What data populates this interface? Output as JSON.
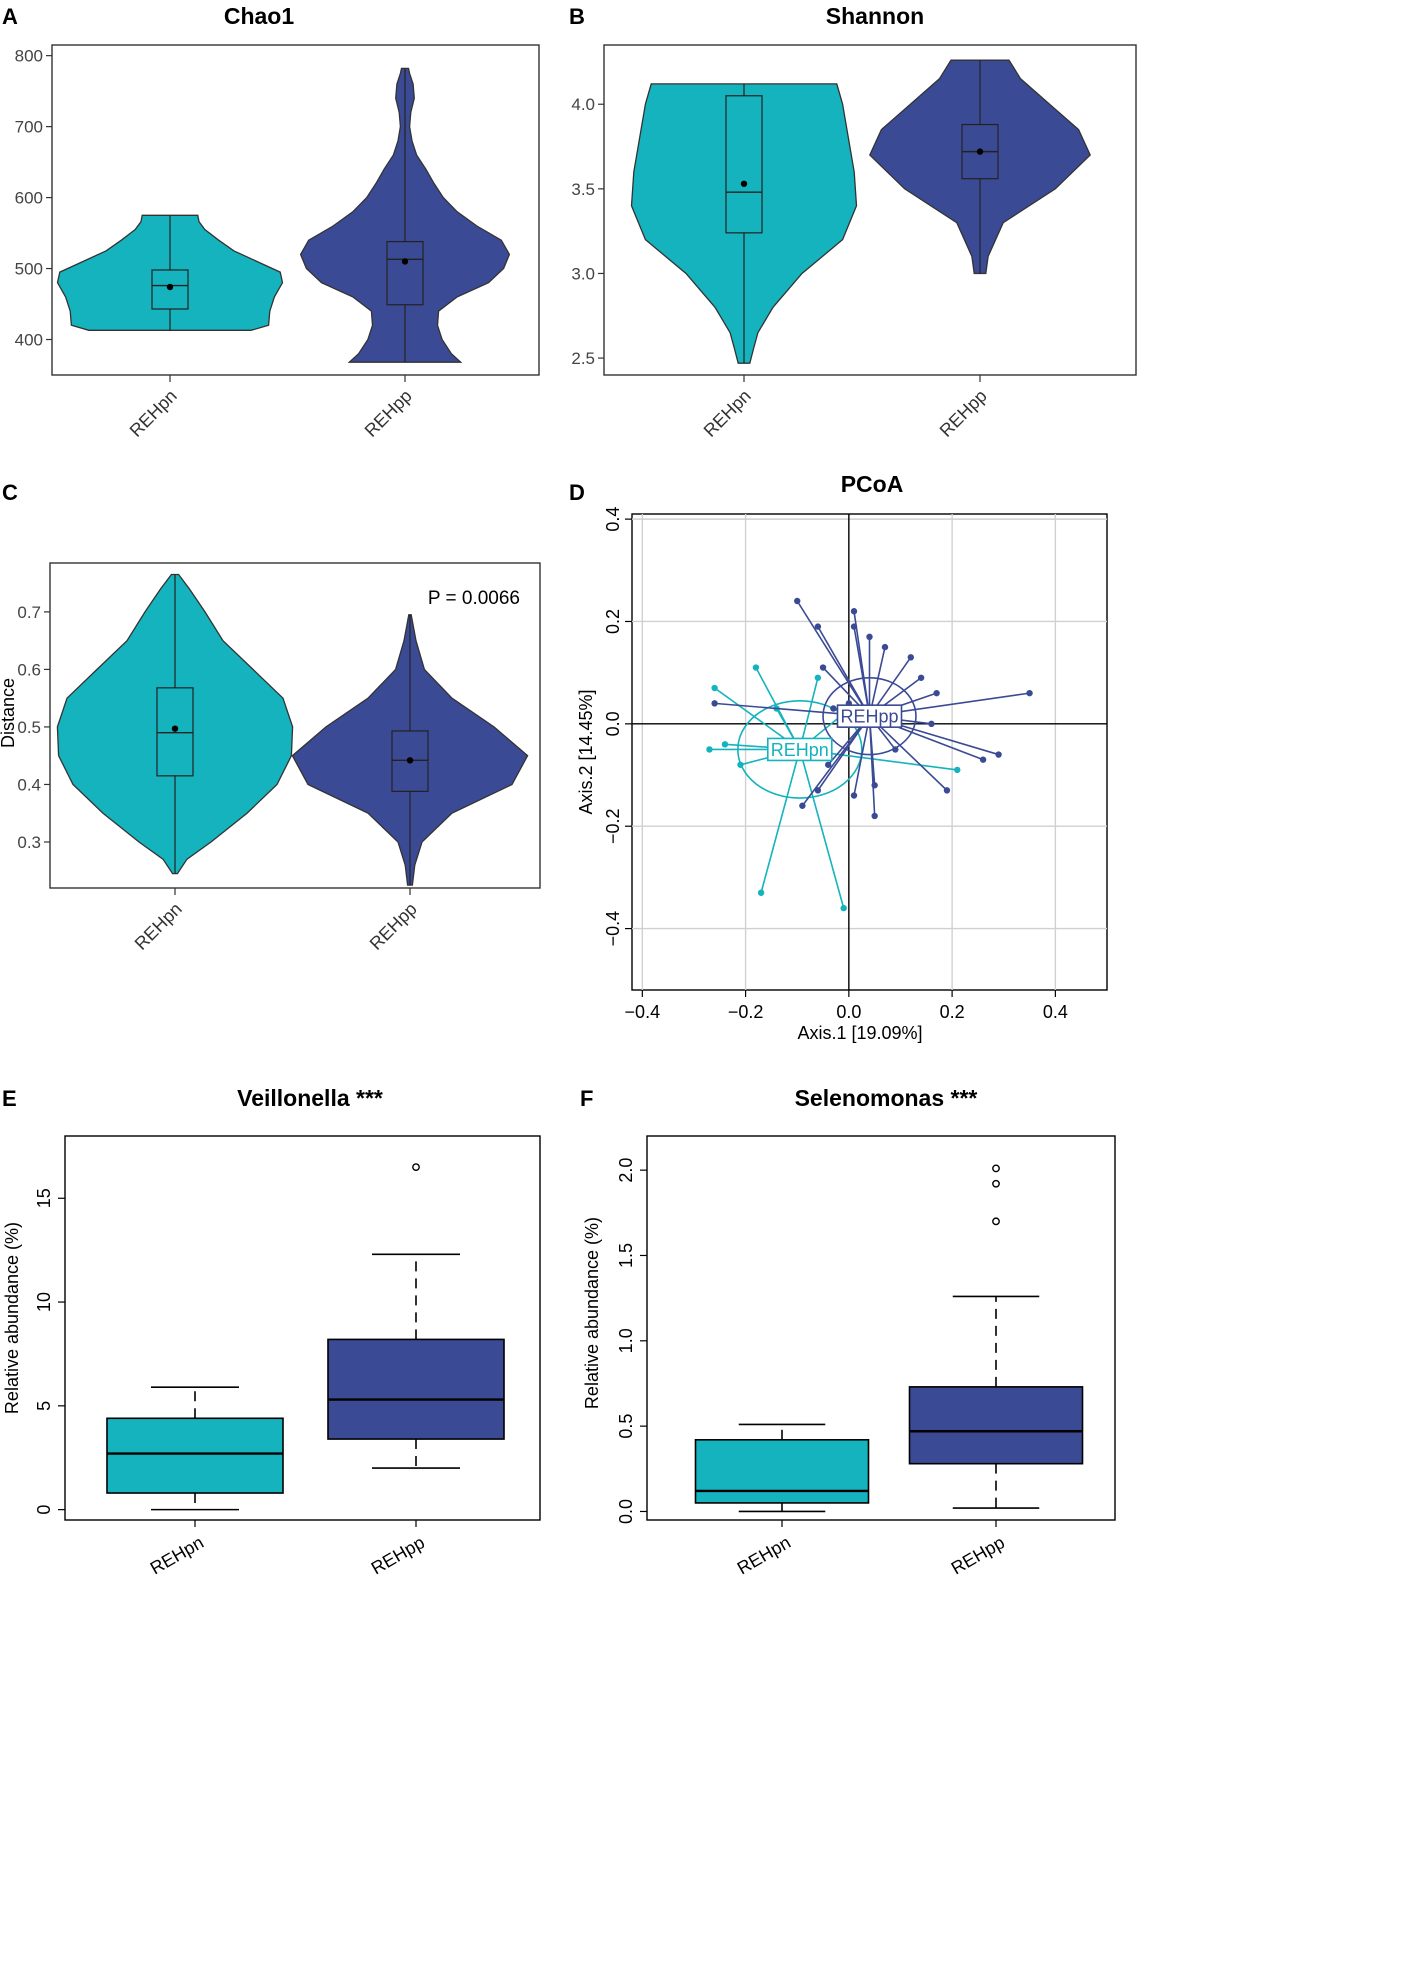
{
  "colors": {
    "teal": "#14b3bd",
    "navy": "#3b4a94",
    "outline": "#333333",
    "grid": "#d0d0d0"
  },
  "chart_data": [
    {
      "panel": "A",
      "type": "violin",
      "title": "Chao1",
      "categories": [
        "REHpn",
        "REHpp"
      ],
      "ylim": [
        350,
        815
      ],
      "yticks": [
        400,
        500,
        600,
        700,
        800
      ],
      "ytick_labels": [
        "400",
        "500",
        "600",
        "700",
        "800"
      ],
      "groups": [
        {
          "name": "REHpn",
          "min": 413,
          "q1": 443,
          "median": 476,
          "q3": 498,
          "max": 575,
          "mean": 474,
          "density": [
            [
              413,
              0.7
            ],
            [
              420,
              0.85
            ],
            [
              440,
              0.86
            ],
            [
              460,
              0.9
            ],
            [
              480,
              0.97
            ],
            [
              495,
              0.95
            ],
            [
              510,
              0.75
            ],
            [
              525,
              0.55
            ],
            [
              540,
              0.42
            ],
            [
              555,
              0.3
            ],
            [
              566,
              0.25
            ],
            [
              575,
              0.24
            ]
          ]
        },
        {
          "name": "REHpp",
          "min": 368,
          "q1": 449,
          "median": 513,
          "q3": 538,
          "max": 782,
          "mean": 510,
          "density": [
            [
              368,
              0.48
            ],
            [
              380,
              0.4
            ],
            [
              400,
              0.32
            ],
            [
              420,
              0.28
            ],
            [
              440,
              0.29
            ],
            [
              460,
              0.45
            ],
            [
              480,
              0.72
            ],
            [
              500,
              0.85
            ],
            [
              520,
              0.9
            ],
            [
              540,
              0.83
            ],
            [
              560,
              0.62
            ],
            [
              580,
              0.45
            ],
            [
              600,
              0.33
            ],
            [
              620,
              0.25
            ],
            [
              640,
              0.18
            ],
            [
              660,
              0.1
            ],
            [
              680,
              0.06
            ],
            [
              700,
              0.04
            ],
            [
              720,
              0.05
            ],
            [
              740,
              0.08
            ],
            [
              760,
              0.07
            ],
            [
              775,
              0.04
            ],
            [
              782,
              0.03
            ]
          ]
        }
      ]
    },
    {
      "panel": "B",
      "type": "violin",
      "title": "Shannon",
      "categories": [
        "REHpn",
        "REHpp"
      ],
      "ylim": [
        2.4,
        4.35
      ],
      "yticks": [
        2.5,
        3.0,
        3.5,
        4.0
      ],
      "ytick_labels": [
        "2.5",
        "3.0",
        "3.5",
        "4.0"
      ],
      "groups": [
        {
          "name": "REHpn",
          "min": 2.47,
          "q1": 3.24,
          "median": 3.48,
          "q3": 4.05,
          "max": 4.12,
          "mean": 3.53,
          "density": [
            [
              2.47,
              0.05
            ],
            [
              2.55,
              0.08
            ],
            [
              2.65,
              0.12
            ],
            [
              2.8,
              0.25
            ],
            [
              3.0,
              0.5
            ],
            [
              3.2,
              0.85
            ],
            [
              3.4,
              0.97
            ],
            [
              3.6,
              0.95
            ],
            [
              3.8,
              0.9
            ],
            [
              4.0,
              0.85
            ],
            [
              4.12,
              0.8
            ]
          ]
        },
        {
          "name": "REHpp",
          "min": 3.0,
          "q1": 3.56,
          "median": 3.72,
          "q3": 3.88,
          "max": 4.26,
          "mean": 3.72,
          "density": [
            [
              3.0,
              0.05
            ],
            [
              3.1,
              0.07
            ],
            [
              3.3,
              0.2
            ],
            [
              3.5,
              0.65
            ],
            [
              3.7,
              0.95
            ],
            [
              3.85,
              0.85
            ],
            [
              4.0,
              0.6
            ],
            [
              4.15,
              0.35
            ],
            [
              4.26,
              0.25
            ]
          ]
        }
      ]
    },
    {
      "panel": "C",
      "type": "violin",
      "title": "",
      "categories": [
        "REHpn",
        "REHpp"
      ],
      "ylim": [
        0.22,
        0.785
      ],
      "yticks": [
        0.3,
        0.4,
        0.5,
        0.6,
        0.7
      ],
      "ytick_labels": [
        "0.3",
        "0.4",
        "0.5",
        "0.6",
        "0.7"
      ],
      "ylabel": "Distance",
      "annotation": "P = 0.0066",
      "groups": [
        {
          "name": "REHpn",
          "min": 0.245,
          "q1": 0.415,
          "median": 0.49,
          "q3": 0.568,
          "max": 0.765,
          "mean": 0.497,
          "density": [
            [
              0.245,
              0.02
            ],
            [
              0.27,
              0.1
            ],
            [
              0.3,
              0.3
            ],
            [
              0.35,
              0.6
            ],
            [
              0.4,
              0.85
            ],
            [
              0.45,
              0.97
            ],
            [
              0.5,
              0.98
            ],
            [
              0.55,
              0.9
            ],
            [
              0.6,
              0.65
            ],
            [
              0.65,
              0.4
            ],
            [
              0.7,
              0.25
            ],
            [
              0.74,
              0.12
            ],
            [
              0.765,
              0.03
            ]
          ]
        },
        {
          "name": "REHpp",
          "min": 0.225,
          "q1": 0.388,
          "median": 0.442,
          "q3": 0.493,
          "max": 0.695,
          "mean": 0.442,
          "density": [
            [
              0.225,
              0.02
            ],
            [
              0.26,
              0.04
            ],
            [
              0.3,
              0.1
            ],
            [
              0.35,
              0.35
            ],
            [
              0.4,
              0.85
            ],
            [
              0.45,
              0.98
            ],
            [
              0.5,
              0.7
            ],
            [
              0.55,
              0.35
            ],
            [
              0.6,
              0.12
            ],
            [
              0.65,
              0.05
            ],
            [
              0.695,
              0.01
            ]
          ]
        }
      ]
    },
    {
      "panel": "D",
      "type": "scatter",
      "title": "PCoA",
      "xlabel": "Axis.1  [19.09%]",
      "ylabel": "Axis.2  [14.45%]",
      "xlim": [
        -0.42,
        0.5
      ],
      "ylim": [
        -0.52,
        0.41
      ],
      "xticks": [
        -0.4,
        -0.2,
        0.0,
        0.2,
        0.4
      ],
      "xtick_labels": [
        "−0.4",
        "−0.2",
        "0.0",
        "0.2",
        "0.4"
      ],
      "yticks": [
        -0.4,
        -0.2,
        0.0,
        0.2,
        0.4
      ],
      "ytick_labels": [
        "−0.4",
        "−0.2",
        "0.0",
        "0.2",
        "0.4"
      ],
      "series": [
        {
          "name": "REHpn",
          "label": "REHpn",
          "centroid": [
            -0.095,
            -0.05
          ],
          "ellipse": [
            0.12,
            0.095
          ],
          "points": [
            [
              -0.18,
              0.11
            ],
            [
              -0.26,
              0.07
            ],
            [
              -0.27,
              -0.05
            ],
            [
              -0.24,
              -0.04
            ],
            [
              -0.21,
              -0.08
            ],
            [
              -0.17,
              -0.33
            ],
            [
              -0.01,
              -0.36
            ],
            [
              0.21,
              -0.09
            ],
            [
              -0.05,
              -0.06
            ],
            [
              -0.06,
              0.09
            ],
            [
              -0.01,
              0.02
            ],
            [
              -0.14,
              0.03
            ]
          ]
        },
        {
          "name": "REHpp",
          "label": "REHpp",
          "centroid": [
            0.04,
            0.015
          ],
          "ellipse": [
            0.09,
            0.075
          ],
          "points": [
            [
              -0.1,
              0.24
            ],
            [
              -0.06,
              0.19
            ],
            [
              0.01,
              0.22
            ],
            [
              0.01,
              0.19
            ],
            [
              0.04,
              0.17
            ],
            [
              0.07,
              0.15
            ],
            [
              0.12,
              0.13
            ],
            [
              0.14,
              0.09
            ],
            [
              0.17,
              0.06
            ],
            [
              0.35,
              0.06
            ],
            [
              0.29,
              -0.06
            ],
            [
              0.26,
              -0.07
            ],
            [
              0.19,
              -0.13
            ],
            [
              0.05,
              -0.18
            ],
            [
              0.05,
              -0.12
            ],
            [
              0.01,
              -0.14
            ],
            [
              -0.09,
              -0.16
            ],
            [
              -0.06,
              -0.13
            ],
            [
              -0.04,
              -0.08
            ],
            [
              -0.03,
              0.03
            ],
            [
              -0.26,
              0.04
            ],
            [
              0.16,
              0.0
            ],
            [
              0.09,
              -0.05
            ],
            [
              -0.05,
              0.11
            ],
            [
              0.0,
              0.04
            ]
          ]
        }
      ]
    },
    {
      "panel": "E",
      "type": "box",
      "title": "Veillonella ***",
      "categories": [
        "REHpn",
        "REHpp"
      ],
      "ylim": [
        -0.5,
        18
      ],
      "yticks": [
        0,
        5,
        10,
        15
      ],
      "ytick_labels": [
        "0",
        "5",
        "10",
        "15"
      ],
      "ylabel": "Relative abundance (%)",
      "groups": [
        {
          "name": "REHpn",
          "min": 0.0,
          "q1": 0.8,
          "median": 2.7,
          "q3": 4.4,
          "max": 5.9,
          "outliers": []
        },
        {
          "name": "REHpp",
          "min": 2.0,
          "q1": 3.4,
          "median": 5.3,
          "q3": 8.2,
          "max": 12.3,
          "outliers": [
            16.5
          ]
        }
      ]
    },
    {
      "panel": "F",
      "type": "box",
      "title": "Selenomonas ***",
      "categories": [
        "REHpn",
        "REHpp"
      ],
      "ylim": [
        -0.05,
        2.2
      ],
      "yticks": [
        0.0,
        0.5,
        1.0,
        1.5,
        2.0
      ],
      "ytick_labels": [
        "0.0",
        "0.5",
        "1.0",
        "1.5",
        "2.0"
      ],
      "ylabel": "Relative abundance (%)",
      "groups": [
        {
          "name": "REHpn",
          "min": 0.0,
          "q1": 0.05,
          "median": 0.12,
          "q3": 0.42,
          "max": 0.51,
          "outliers": []
        },
        {
          "name": "REHpp",
          "min": 0.02,
          "q1": 0.28,
          "median": 0.47,
          "q3": 0.73,
          "max": 1.26,
          "outliers": [
            1.7,
            1.92,
            2.01
          ]
        }
      ]
    }
  ]
}
